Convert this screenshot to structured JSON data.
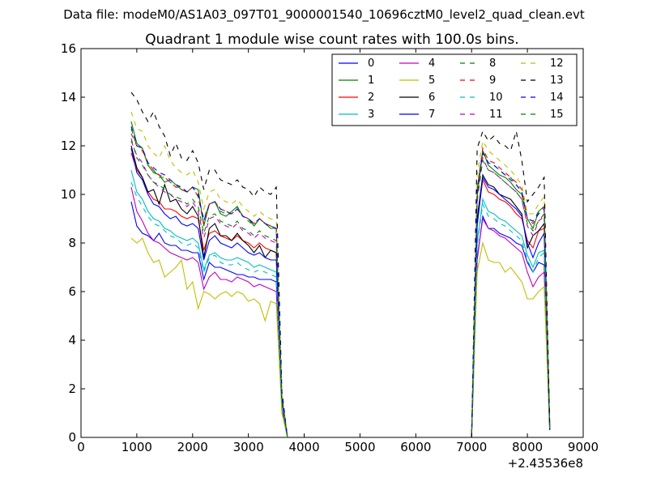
{
  "figure": {
    "suptitle": "Data file: modeM0/AS1A03_097T01_9000001540_10696cztM0_level2_quad_clean.evt"
  },
  "chart_data": {
    "type": "line",
    "title": "Quadrant 1 module wise count rates with 100.0s bins.",
    "xlabel": "",
    "ylabel": "",
    "x_offset_label": "+2.43536e8",
    "xlim": [
      0,
      9000
    ],
    "ylim": [
      0,
      16
    ],
    "xticks": [
      0,
      1000,
      2000,
      3000,
      4000,
      5000,
      6000,
      7000,
      8000,
      9000
    ],
    "yticks": [
      0,
      2,
      4,
      6,
      8,
      10,
      12,
      14,
      16
    ],
    "legend_position": "top-right",
    "legend_columns": 4,
    "x": [
      900,
      1000,
      1100,
      1200,
      1300,
      1400,
      1500,
      1600,
      1700,
      1800,
      1900,
      2000,
      2100,
      2200,
      2300,
      2400,
      2500,
      2600,
      2700,
      2800,
      2900,
      3000,
      3100,
      3200,
      3300,
      3400,
      3500,
      3600,
      3700,
      3800,
      7000,
      7100,
      7200,
      7300,
      7400,
      7500,
      7600,
      7700,
      7800,
      7900,
      8000,
      8100,
      8200,
      8300,
      8400
    ],
    "series": [
      {
        "name": "0",
        "color": "#0000ff",
        "dashed": false,
        "values": [
          9.7,
          8.7,
          8.4,
          8.3,
          8.1,
          8.4,
          8.0,
          7.9,
          7.9,
          7.7,
          7.7,
          7.6,
          7.6,
          6.5,
          7.2,
          7.0,
          7.0,
          6.9,
          6.8,
          6.7,
          6.7,
          6.6,
          6.6,
          6.5,
          6.5,
          6.5,
          6.4,
          1.3,
          0.0,
          0.0,
          0.0,
          7.3,
          9.1,
          8.6,
          8.6,
          8.4,
          8.3,
          8.2,
          8.0,
          7.9,
          7.2,
          6.8,
          7.2,
          7.1,
          0.3
        ]
      },
      {
        "name": "1",
        "color": "#008000",
        "dashed": false,
        "values": [
          13.0,
          12.1,
          11.9,
          11.2,
          10.9,
          10.8,
          10.5,
          10.6,
          10.4,
          10.2,
          10.1,
          10.3,
          10.2,
          8.7,
          9.6,
          9.7,
          9.2,
          9.1,
          9.3,
          9.5,
          9.1,
          9.0,
          8.7,
          9.0,
          8.8,
          8.6,
          8.6,
          1.7,
          0.0,
          0.0,
          0.0,
          9.9,
          11.8,
          11.2,
          11.0,
          10.8,
          10.7,
          10.5,
          10.2,
          10.0,
          9.0,
          8.6,
          9.3,
          9.5,
          0.4
        ]
      },
      {
        "name": "2",
        "color": "#ff0000",
        "dashed": false,
        "values": [
          11.7,
          11.0,
          10.7,
          10.1,
          9.8,
          9.7,
          9.4,
          9.4,
          9.3,
          9.1,
          9.0,
          9.1,
          9.0,
          7.7,
          8.4,
          8.5,
          8.3,
          8.2,
          8.1,
          8.3,
          8.1,
          8.0,
          7.8,
          8.0,
          7.8,
          7.7,
          7.6,
          1.5,
          0.0,
          0.0,
          0.0,
          8.9,
          10.6,
          10.1,
          10.0,
          9.8,
          9.7,
          9.5,
          9.2,
          9.0,
          8.1,
          7.8,
          8.5,
          8.6,
          0.3
        ]
      },
      {
        "name": "3",
        "color": "#00bfbf",
        "dashed": false,
        "values": [
          11.0,
          10.1,
          9.8,
          9.3,
          9.0,
          8.9,
          8.6,
          8.5,
          8.3,
          8.2,
          8.1,
          8.2,
          8.0,
          6.9,
          7.5,
          7.6,
          7.4,
          7.3,
          7.3,
          7.4,
          7.3,
          7.2,
          7.0,
          7.1,
          7.0,
          6.9,
          6.8,
          1.4,
          0.0,
          0.0,
          0.0,
          8.0,
          9.8,
          9.3,
          9.2,
          9.0,
          8.9,
          8.7,
          8.5,
          8.3,
          7.5,
          7.0,
          7.6,
          7.7,
          0.3
        ]
      },
      {
        "name": "4",
        "color": "#bf00bf",
        "dashed": false,
        "values": [
          10.3,
          9.3,
          8.9,
          8.4,
          8.1,
          8.0,
          7.8,
          7.6,
          7.5,
          7.4,
          7.3,
          7.4,
          7.2,
          6.1,
          6.6,
          6.8,
          6.5,
          6.5,
          6.4,
          6.6,
          6.5,
          6.4,
          6.2,
          6.3,
          6.2,
          6.1,
          6.0,
          1.2,
          0.0,
          0.0,
          0.0,
          7.4,
          9.0,
          8.6,
          8.5,
          8.3,
          8.2,
          8.0,
          7.8,
          7.6,
          6.8,
          6.2,
          6.6,
          6.8,
          0.3
        ]
      },
      {
        "name": "5",
        "color": "#bfbf00",
        "dashed": false,
        "values": [
          8.2,
          8.0,
          8.2,
          7.6,
          7.2,
          7.3,
          6.6,
          6.8,
          7.0,
          7.3,
          6.1,
          6.4,
          5.3,
          6.0,
          5.9,
          5.7,
          5.9,
          6.0,
          5.8,
          6.0,
          5.9,
          5.6,
          5.7,
          5.5,
          4.8,
          5.6,
          5.5,
          1.0,
          0.0,
          0.0,
          0.0,
          6.8,
          8.0,
          7.3,
          7.2,
          7.2,
          6.8,
          7.0,
          6.7,
          6.4,
          5.7,
          5.7,
          6.0,
          6.2,
          0.3
        ]
      },
      {
        "name": "6",
        "color": "#000000",
        "dashed": false,
        "values": [
          12.0,
          11.1,
          10.7,
          10.1,
          10.2,
          9.6,
          10.4,
          9.7,
          9.8,
          9.4,
          9.2,
          9.5,
          9.1,
          7.4,
          8.6,
          8.8,
          8.3,
          8.3,
          8.1,
          8.4,
          8.1,
          7.9,
          7.6,
          7.9,
          7.4,
          7.7,
          7.6,
          1.5,
          0.0,
          0.0,
          0.0,
          9.0,
          10.8,
          10.4,
          10.3,
          10.0,
          9.9,
          9.8,
          9.5,
          9.2,
          7.8,
          8.3,
          8.5,
          8.8,
          0.4
        ]
      },
      {
        "name": "7",
        "color": "#0000ff",
        "dashed": false,
        "values": [
          11.9,
          10.9,
          10.6,
          10.0,
          9.6,
          9.5,
          9.2,
          9.0,
          9.1,
          8.8,
          8.7,
          8.8,
          8.6,
          7.3,
          8.1,
          8.3,
          8.0,
          7.9,
          7.8,
          8.0,
          7.8,
          7.6,
          7.5,
          7.6,
          7.4,
          7.3,
          7.3,
          1.5,
          0.0,
          0.0,
          0.0,
          8.7,
          10.7,
          10.3,
          10.2,
          10.0,
          9.8,
          9.6,
          9.4,
          9.1,
          8.0,
          7.4,
          8.0,
          8.4,
          0.3
        ]
      },
      {
        "name": "8",
        "color": "#008000",
        "dashed": true,
        "values": [
          12.7,
          12.0,
          11.9,
          11.2,
          11.0,
          10.7,
          10.7,
          10.5,
          10.3,
          10.3,
          10.1,
          10.3,
          9.9,
          9.0,
          9.6,
          9.7,
          9.3,
          9.2,
          9.2,
          9.5,
          9.1,
          8.9,
          8.7,
          9.0,
          8.8,
          8.7,
          8.6,
          1.7,
          0.0,
          0.0,
          0.0,
          10.3,
          11.8,
          11.3,
          11.2,
          11.0,
          10.8,
          10.7,
          10.4,
          10.1,
          9.0,
          8.9,
          9.3,
          9.5,
          0.4
        ]
      },
      {
        "name": "9",
        "color": "#ff0000",
        "dashed": true,
        "values": [
          12.5,
          12.0,
          11.8,
          11.3,
          11.0,
          10.8,
          10.7,
          10.5,
          10.3,
          10.2,
          10.1,
          10.3,
          9.9,
          8.8,
          9.6,
          9.7,
          9.4,
          9.3,
          9.2,
          9.4,
          9.1,
          9.0,
          8.8,
          9.0,
          8.8,
          8.7,
          8.6,
          1.7,
          0.0,
          0.0,
          0.0,
          10.2,
          11.9,
          11.4,
          11.3,
          11.1,
          10.9,
          10.7,
          10.5,
          10.2,
          9.0,
          8.8,
          9.2,
          9.5,
          0.4
        ]
      },
      {
        "name": "10",
        "color": "#00bfbf",
        "dashed": true,
        "values": [
          10.5,
          9.9,
          9.5,
          9.1,
          8.8,
          8.7,
          8.5,
          8.3,
          8.2,
          8.0,
          7.9,
          8.0,
          7.8,
          6.8,
          7.4,
          7.5,
          7.2,
          7.1,
          7.1,
          7.2,
          7.0,
          6.9,
          6.8,
          6.9,
          6.8,
          6.7,
          6.6,
          1.3,
          0.0,
          0.0,
          0.0,
          7.9,
          9.6,
          9.1,
          9.0,
          8.8,
          8.7,
          8.5,
          8.3,
          8.1,
          7.3,
          6.8,
          7.4,
          7.6,
          0.3
        ]
      },
      {
        "name": "11",
        "color": "#bf00bf",
        "dashed": true,
        "values": [
          12.2,
          11.6,
          11.3,
          10.8,
          10.5,
          10.3,
          10.1,
          10.0,
          9.8,
          9.7,
          9.5,
          9.7,
          9.3,
          8.2,
          9.0,
          9.1,
          8.8,
          8.7,
          8.6,
          8.8,
          8.5,
          8.4,
          8.2,
          8.4,
          8.2,
          8.1,
          8.0,
          1.6,
          0.0,
          0.0,
          0.0,
          9.7,
          11.5,
          11.0,
          10.9,
          10.7,
          10.5,
          10.3,
          10.1,
          9.8,
          8.7,
          8.3,
          8.9,
          9.1,
          0.4
        ]
      },
      {
        "name": "12",
        "color": "#bfbf00",
        "dashed": true,
        "values": [
          13.4,
          12.7,
          12.6,
          12.0,
          11.7,
          11.5,
          12.0,
          11.4,
          11.1,
          10.9,
          10.8,
          11.0,
          10.5,
          9.4,
          10.1,
          10.2,
          9.8,
          9.7,
          9.6,
          9.8,
          9.5,
          9.3,
          9.1,
          9.3,
          9.1,
          9.0,
          8.9,
          1.8,
          0.0,
          0.0,
          0.0,
          10.8,
          12.2,
          11.8,
          11.6,
          11.4,
          11.2,
          11.0,
          10.7,
          10.4,
          9.2,
          9.2,
          9.6,
          9.9,
          0.4
        ]
      },
      {
        "name": "13",
        "color": "#000000",
        "dashed": true,
        "values": [
          14.2,
          13.9,
          13.4,
          13.0,
          13.4,
          12.8,
          12.4,
          11.6,
          12.1,
          11.5,
          11.4,
          11.8,
          11.3,
          10.2,
          11.0,
          11.0,
          10.6,
          10.5,
          10.4,
          10.6,
          10.3,
          10.2,
          9.9,
          10.3,
          10.1,
          10.0,
          10.3,
          1.9,
          0.0,
          0.0,
          0.0,
          11.9,
          12.6,
          12.2,
          12.4,
          12.1,
          12.0,
          11.8,
          12.6,
          11.4,
          9.7,
          10.0,
          10.3,
          10.7,
          0.5
        ]
      },
      {
        "name": "14",
        "color": "#0000ff",
        "dashed": true,
        "values": [
          12.8,
          12.0,
          11.9,
          11.3,
          11.1,
          10.9,
          10.8,
          10.6,
          10.4,
          10.3,
          10.1,
          10.3,
          10.0,
          8.9,
          9.6,
          9.7,
          9.4,
          9.3,
          9.2,
          9.4,
          9.1,
          9.0,
          8.8,
          9.0,
          8.8,
          8.7,
          8.6,
          1.7,
          0.0,
          0.0,
          0.0,
          10.2,
          11.7,
          11.3,
          11.2,
          11.0,
          10.8,
          10.6,
          10.4,
          10.1,
          9.0,
          8.9,
          9.2,
          9.4,
          0.4
        ]
      },
      {
        "name": "15",
        "color": "#008000",
        "dashed": true,
        "values": [
          12.3,
          11.5,
          11.2,
          10.8,
          10.5,
          10.4,
          10.2,
          10.0,
          9.9,
          9.8,
          9.6,
          9.8,
          9.5,
          8.4,
          9.1,
          9.2,
          8.9,
          8.8,
          8.7,
          8.9,
          8.6,
          8.5,
          8.3,
          8.5,
          8.3,
          8.2,
          8.1,
          1.6,
          0.0,
          0.0,
          0.0,
          9.8,
          11.4,
          11.0,
          10.9,
          10.7,
          10.5,
          10.3,
          10.1,
          9.8,
          8.8,
          8.5,
          8.9,
          9.2,
          0.4
        ]
      }
    ]
  }
}
